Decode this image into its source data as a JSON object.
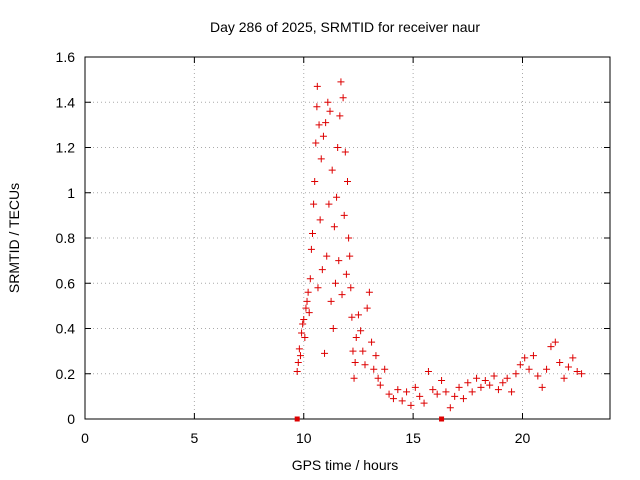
{
  "chart_data": {
    "type": "scatter",
    "title": "Day 286 of 2025, SRMTID for receiver naur",
    "xlabel": "GPS time / hours",
    "ylabel": "SRMTID / TECUs",
    "xlim": [
      0,
      24
    ],
    "ylim": [
      0,
      1.6
    ],
    "xticks": [
      0,
      5,
      10,
      15,
      20
    ],
    "xtick_labels": [
      "0",
      "5",
      "10",
      "15",
      "20"
    ],
    "yticks": [
      0,
      0.2,
      0.4,
      0.6,
      0.8,
      1.0,
      1.2,
      1.4,
      1.6
    ],
    "ytick_labels": [
      "0",
      "0.2",
      "0.4",
      "0.6",
      "0.8",
      "1",
      "1.2",
      "1.4",
      "1.6"
    ],
    "grid": true,
    "marker": "+",
    "colors": {
      "series": "#dd0000",
      "grid": "#aaaaaa",
      "axis": "#000000"
    },
    "series": [
      {
        "name": "SRMTID",
        "points": [
          [
            9.7,
            0.21
          ],
          [
            9.75,
            0.25
          ],
          [
            9.8,
            0.31
          ],
          [
            9.85,
            0.28
          ],
          [
            9.9,
            0.38
          ],
          [
            9.95,
            0.42
          ],
          [
            10.0,
            0.44
          ],
          [
            10.05,
            0.36
          ],
          [
            10.1,
            0.49
          ],
          [
            10.15,
            0.52
          ],
          [
            10.2,
            0.56
          ],
          [
            10.25,
            0.47
          ],
          [
            10.3,
            0.62
          ],
          [
            10.35,
            0.75
          ],
          [
            10.4,
            0.82
          ],
          [
            10.45,
            0.95
          ],
          [
            10.5,
            1.05
          ],
          [
            10.55,
            1.22
          ],
          [
            10.6,
            1.38
          ],
          [
            10.62,
            1.47
          ],
          [
            10.65,
            0.58
          ],
          [
            10.7,
            1.3
          ],
          [
            10.75,
            0.88
          ],
          [
            10.8,
            1.15
          ],
          [
            10.85,
            0.66
          ],
          [
            10.9,
            1.25
          ],
          [
            10.95,
            0.29
          ],
          [
            11.0,
            1.31
          ],
          [
            11.05,
            0.72
          ],
          [
            11.1,
            1.4
          ],
          [
            11.15,
            0.95
          ],
          [
            11.2,
            1.36
          ],
          [
            11.25,
            0.52
          ],
          [
            11.3,
            1.1
          ],
          [
            11.35,
            0.4
          ],
          [
            11.4,
            0.85
          ],
          [
            11.45,
            0.6
          ],
          [
            11.5,
            0.98
          ],
          [
            11.55,
            1.2
          ],
          [
            11.6,
            0.7
          ],
          [
            11.65,
            1.34
          ],
          [
            11.7,
            1.49
          ],
          [
            11.75,
            0.55
          ],
          [
            11.8,
            1.42
          ],
          [
            11.85,
            0.9
          ],
          [
            11.9,
            1.18
          ],
          [
            11.95,
            0.64
          ],
          [
            12.0,
            1.05
          ],
          [
            12.05,
            0.8
          ],
          [
            12.1,
            0.72
          ],
          [
            12.15,
            0.58
          ],
          [
            12.2,
            0.45
          ],
          [
            12.25,
            0.3
          ],
          [
            12.3,
            0.18
          ],
          [
            12.35,
            0.25
          ],
          [
            12.4,
            0.36
          ],
          [
            12.5,
            0.46
          ],
          [
            12.6,
            0.39
          ],
          [
            12.7,
            0.3
          ],
          [
            12.8,
            0.24
          ],
          [
            12.9,
            0.49
          ],
          [
            13.0,
            0.56
          ],
          [
            13.1,
            0.34
          ],
          [
            13.2,
            0.22
          ],
          [
            13.3,
            0.28
          ],
          [
            13.4,
            0.18
          ],
          [
            13.5,
            0.15
          ],
          [
            13.7,
            0.22
          ],
          [
            13.9,
            0.11
          ],
          [
            14.1,
            0.09
          ],
          [
            14.3,
            0.13
          ],
          [
            14.5,
            0.08
          ],
          [
            14.7,
            0.12
          ],
          [
            14.9,
            0.06
          ],
          [
            15.1,
            0.14
          ],
          [
            15.3,
            0.1
          ],
          [
            15.5,
            0.07
          ],
          [
            15.7,
            0.21
          ],
          [
            15.9,
            0.13
          ],
          [
            16.1,
            0.11
          ],
          [
            16.3,
            0.17
          ],
          [
            16.5,
            0.12
          ],
          [
            16.7,
            0.05
          ],
          [
            16.9,
            0.1
          ],
          [
            17.1,
            0.14
          ],
          [
            17.3,
            0.09
          ],
          [
            17.5,
            0.16
          ],
          [
            17.7,
            0.12
          ],
          [
            17.9,
            0.18
          ],
          [
            18.1,
            0.14
          ],
          [
            18.3,
            0.17
          ],
          [
            18.5,
            0.15
          ],
          [
            18.7,
            0.19
          ],
          [
            18.9,
            0.13
          ],
          [
            19.1,
            0.16
          ],
          [
            19.3,
            0.18
          ],
          [
            19.5,
            0.12
          ],
          [
            19.7,
            0.2
          ],
          [
            19.9,
            0.24
          ],
          [
            20.1,
            0.27
          ],
          [
            20.3,
            0.22
          ],
          [
            20.5,
            0.28
          ],
          [
            20.7,
            0.19
          ],
          [
            20.9,
            0.14
          ],
          [
            21.1,
            0.22
          ],
          [
            21.3,
            0.32
          ],
          [
            21.5,
            0.34
          ],
          [
            21.7,
            0.25
          ],
          [
            21.9,
            0.18
          ],
          [
            22.1,
            0.23
          ],
          [
            22.3,
            0.27
          ],
          [
            22.5,
            0.21
          ],
          [
            22.7,
            0.2
          ]
        ],
        "zero_points": [
          [
            9.7,
            0.0
          ],
          [
            16.3,
            0.0
          ]
        ]
      }
    ]
  }
}
